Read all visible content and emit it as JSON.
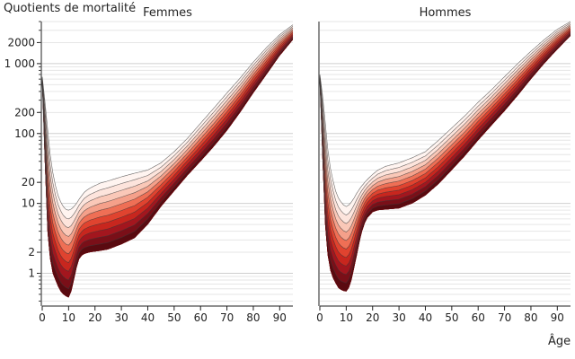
{
  "chart_data": {
    "type": "area",
    "ylabel": "Quotients de mortalité",
    "xlabel": "Âge",
    "yscale": "log",
    "ylim": [
      0.35,
      4000
    ],
    "xlim": [
      0,
      95
    ],
    "y_tick_labels": [
      "1",
      "2",
      "10",
      "20",
      "100",
      "200",
      "1 000",
      "2000"
    ],
    "x_tick_labels": [
      "0",
      "10",
      "20",
      "30",
      "40",
      "50",
      "60",
      "70",
      "80",
      "90"
    ],
    "grid": true,
    "colors": [
      "#5a0a10",
      "#7a0f18",
      "#a3161e",
      "#c8261e",
      "#e0432f",
      "#ef6f55",
      "#f5a08a",
      "#fac8b8",
      "#fde4dc",
      "#fff4f0"
    ],
    "panels": [
      {
        "title": "Femmes",
        "envelope": {
          "x": [
            0,
            1,
            2,
            3,
            4,
            5,
            6,
            7,
            8,
            9,
            10,
            11,
            12,
            13,
            14,
            15,
            16,
            17,
            18,
            20,
            22,
            25,
            30,
            35,
            40,
            45,
            50,
            55,
            60,
            65,
            70,
            75,
            80,
            85,
            90,
            95
          ],
          "upper": [
            650,
            300,
            120,
            50,
            28,
            18,
            13,
            10.5,
            9,
            8.2,
            8,
            8.3,
            9,
            10,
            11.5,
            13,
            14.5,
            15.5,
            16.5,
            18,
            19.5,
            21,
            24,
            27,
            30,
            38,
            55,
            85,
            140,
            230,
            380,
            620,
            1050,
            1700,
            2600,
            3600
          ],
          "lower": [
            500,
            40,
            4,
            1.6,
            1.0,
            0.8,
            0.65,
            0.55,
            0.5,
            0.47,
            0.45,
            0.55,
            0.8,
            1.2,
            1.6,
            1.8,
            1.9,
            1.95,
            2,
            2.05,
            2.1,
            2.2,
            2.6,
            3.2,
            5,
            9,
            15,
            25,
            40,
            65,
            110,
            200,
            380,
            700,
            1300,
            2200
          ]
        }
      },
      {
        "title": "Hommes",
        "envelope": {
          "x": [
            0,
            1,
            2,
            3,
            4,
            5,
            6,
            7,
            8,
            9,
            10,
            11,
            12,
            13,
            14,
            15,
            16,
            17,
            18,
            20,
            22,
            25,
            30,
            35,
            40,
            45,
            50,
            55,
            60,
            65,
            70,
            75,
            80,
            85,
            90,
            95
          ],
          "upper": [
            700,
            360,
            150,
            60,
            32,
            21,
            15,
            12,
            10.5,
            9.5,
            9,
            9.5,
            10.5,
            12,
            14,
            16,
            18,
            20,
            22,
            26,
            30,
            34,
            38,
            45,
            55,
            80,
            120,
            180,
            280,
            420,
            650,
            1000,
            1500,
            2200,
            3100,
            4000
          ],
          "lower": [
            520,
            45,
            5,
            1.8,
            1.1,
            0.85,
            0.72,
            0.62,
            0.58,
            0.56,
            0.55,
            0.62,
            0.8,
            1.2,
            1.8,
            2.8,
            4,
            5.2,
            6.2,
            7.5,
            8,
            8.2,
            8.5,
            10,
            13,
            19,
            30,
            48,
            80,
            130,
            210,
            350,
            600,
            1000,
            1600,
            2500
          ]
        }
      }
    ]
  }
}
